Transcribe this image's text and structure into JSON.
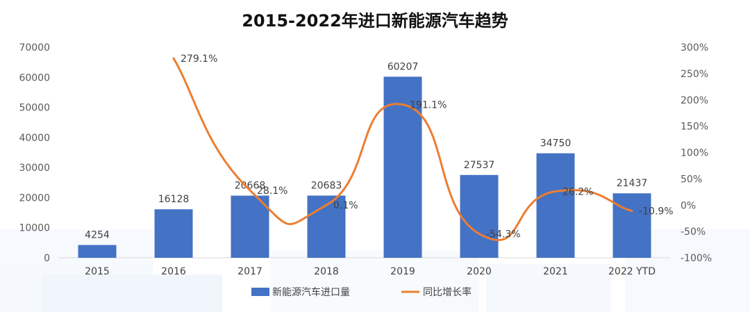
{
  "chart_data": {
    "type": "bar",
    "title": "2015-2022年进口新能源汽车趋势",
    "categories": [
      "2015",
      "2016",
      "2017",
      "2018",
      "2019",
      "2020",
      "2021",
      "2022 YTD"
    ],
    "series": [
      {
        "name": "新能源汽车进口量",
        "type": "bar",
        "axis": "left",
        "color": "#4472C4",
        "values": [
          4254,
          16128,
          20668,
          20683,
          60207,
          27537,
          34750,
          21437
        ],
        "labels": [
          "4254",
          "16128",
          "20668",
          "20683",
          "60207",
          "27537",
          "34750",
          "21437"
        ]
      },
      {
        "name": "同比增长率",
        "type": "line",
        "smooth": true,
        "axis": "right",
        "color": "#ED7D31",
        "values": [
          null,
          279.1,
          28.1,
          0.1,
          191.1,
          -54.3,
          26.2,
          -10.9
        ],
        "labels": [
          "",
          "279.1%",
          "28.1%",
          "0.1%",
          "191.1%",
          "-54.3%",
          "26.2%",
          "-10.9%"
        ]
      }
    ],
    "ylim_left": [
      0,
      70000
    ],
    "ylim_right": [
      -100,
      300
    ],
    "y_ticks_left": [
      "0",
      "10000",
      "20000",
      "30000",
      "40000",
      "50000",
      "60000",
      "70000"
    ],
    "y_ticks_right": [
      "-100%",
      "-50%",
      "0%",
      "50%",
      "100%",
      "150%",
      "200%",
      "250%",
      "300%"
    ],
    "grid": false,
    "legend_position": "bottom"
  }
}
